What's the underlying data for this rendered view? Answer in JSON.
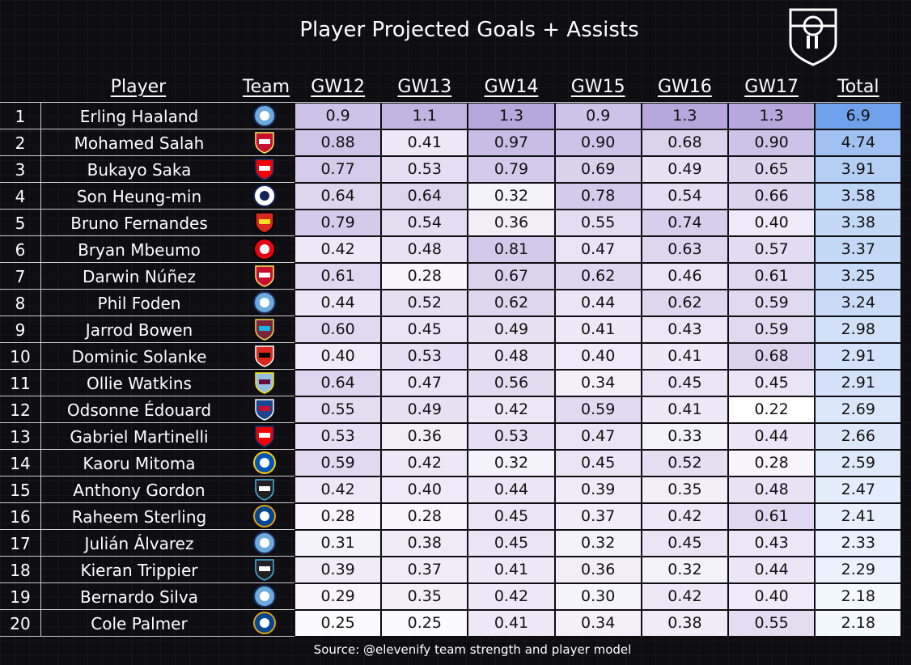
{
  "title": "Player Projected Goals + Assists",
  "source": "Source: @elevenify team strength and player model",
  "colors": {
    "background": "#0d0d12",
    "text": "#ffffff",
    "cell_low": "#ffffff",
    "gw_high": "#b7a7dc",
    "total_high": "#6fa2ea"
  },
  "chart_data": {
    "type": "table",
    "title": "Player Projected Goals + Assists",
    "columns": [
      "Player",
      "Team",
      "GW12",
      "GW13",
      "GW14",
      "GW15",
      "GW16",
      "GW17",
      "Total"
    ],
    "rows": [
      {
        "rank": "1",
        "player": "Erling Haaland",
        "team_badge": "man-city-badge",
        "gw": [
          "0.9",
          "1.1",
          "1.3",
          "0.9",
          "1.3",
          "1.3"
        ],
        "total": "6.9"
      },
      {
        "rank": "2",
        "player": "Mohamed Salah",
        "team_badge": "liverpool-badge",
        "gw": [
          "0.88",
          "0.41",
          "0.97",
          "0.90",
          "0.68",
          "0.90"
        ],
        "total": "4.74"
      },
      {
        "rank": "3",
        "player": "Bukayo Saka",
        "team_badge": "arsenal-badge",
        "gw": [
          "0.77",
          "0.53",
          "0.79",
          "0.69",
          "0.49",
          "0.65"
        ],
        "total": "3.91"
      },
      {
        "rank": "4",
        "player": "Son Heung-min",
        "team_badge": "tottenham-badge",
        "gw": [
          "0.64",
          "0.64",
          "0.32",
          "0.78",
          "0.54",
          "0.66"
        ],
        "total": "3.58"
      },
      {
        "rank": "5",
        "player": "Bruno Fernandes",
        "team_badge": "man-united-badge",
        "gw": [
          "0.79",
          "0.54",
          "0.36",
          "0.55",
          "0.74",
          "0.40"
        ],
        "total": "3.38"
      },
      {
        "rank": "6",
        "player": "Bryan Mbeumo",
        "team_badge": "brentford-badge",
        "gw": [
          "0.42",
          "0.48",
          "0.81",
          "0.47",
          "0.63",
          "0.57"
        ],
        "total": "3.37"
      },
      {
        "rank": "7",
        "player": "Darwin Núñez",
        "team_badge": "liverpool-badge",
        "gw": [
          "0.61",
          "0.28",
          "0.67",
          "0.62",
          "0.46",
          "0.61"
        ],
        "total": "3.25"
      },
      {
        "rank": "8",
        "player": "Phil Foden",
        "team_badge": "man-city-badge",
        "gw": [
          "0.44",
          "0.52",
          "0.62",
          "0.44",
          "0.62",
          "0.59"
        ],
        "total": "3.24"
      },
      {
        "rank": "9",
        "player": "Jarrod Bowen",
        "team_badge": "west-ham-badge",
        "gw": [
          "0.60",
          "0.45",
          "0.49",
          "0.41",
          "0.43",
          "0.59"
        ],
        "total": "2.98"
      },
      {
        "rank": "10",
        "player": "Dominic Solanke",
        "team_badge": "bournemouth-badge",
        "gw": [
          "0.40",
          "0.53",
          "0.48",
          "0.40",
          "0.41",
          "0.68"
        ],
        "total": "2.91"
      },
      {
        "rank": "11",
        "player": "Ollie Watkins",
        "team_badge": "aston-villa-badge",
        "gw": [
          "0.64",
          "0.47",
          "0.56",
          "0.34",
          "0.45",
          "0.45"
        ],
        "total": "2.91"
      },
      {
        "rank": "12",
        "player": "Odsonne Édouard",
        "team_badge": "crystal-palace-badge",
        "gw": [
          "0.55",
          "0.49",
          "0.42",
          "0.59",
          "0.41",
          "0.22"
        ],
        "total": "2.69"
      },
      {
        "rank": "13",
        "player": "Gabriel Martinelli",
        "team_badge": "arsenal-badge",
        "gw": [
          "0.53",
          "0.36",
          "0.53",
          "0.47",
          "0.33",
          "0.44"
        ],
        "total": "2.66"
      },
      {
        "rank": "14",
        "player": "Kaoru Mitoma",
        "team_badge": "brighton-badge",
        "gw": [
          "0.59",
          "0.42",
          "0.32",
          "0.45",
          "0.52",
          "0.28"
        ],
        "total": "2.59"
      },
      {
        "rank": "15",
        "player": "Anthony Gordon",
        "team_badge": "newcastle-badge",
        "gw": [
          "0.42",
          "0.40",
          "0.44",
          "0.39",
          "0.35",
          "0.48"
        ],
        "total": "2.47"
      },
      {
        "rank": "16",
        "player": "Raheem Sterling",
        "team_badge": "chelsea-badge",
        "gw": [
          "0.28",
          "0.28",
          "0.45",
          "0.37",
          "0.42",
          "0.61"
        ],
        "total": "2.41"
      },
      {
        "rank": "17",
        "player": "Julián Álvarez",
        "team_badge": "man-city-badge",
        "gw": [
          "0.31",
          "0.38",
          "0.45",
          "0.32",
          "0.45",
          "0.43"
        ],
        "total": "2.33"
      },
      {
        "rank": "18",
        "player": "Kieran Trippier",
        "team_badge": "newcastle-badge",
        "gw": [
          "0.39",
          "0.37",
          "0.41",
          "0.36",
          "0.32",
          "0.44"
        ],
        "total": "2.29"
      },
      {
        "rank": "19",
        "player": "Bernardo Silva",
        "team_badge": "man-city-badge",
        "gw": [
          "0.29",
          "0.35",
          "0.42",
          "0.30",
          "0.42",
          "0.40"
        ],
        "total": "2.18"
      },
      {
        "rank": "20",
        "player": "Cole Palmer",
        "team_badge": "chelsea-badge",
        "gw": [
          "0.25",
          "0.25",
          "0.41",
          "0.34",
          "0.38",
          "0.55"
        ],
        "total": "2.18"
      }
    ]
  }
}
